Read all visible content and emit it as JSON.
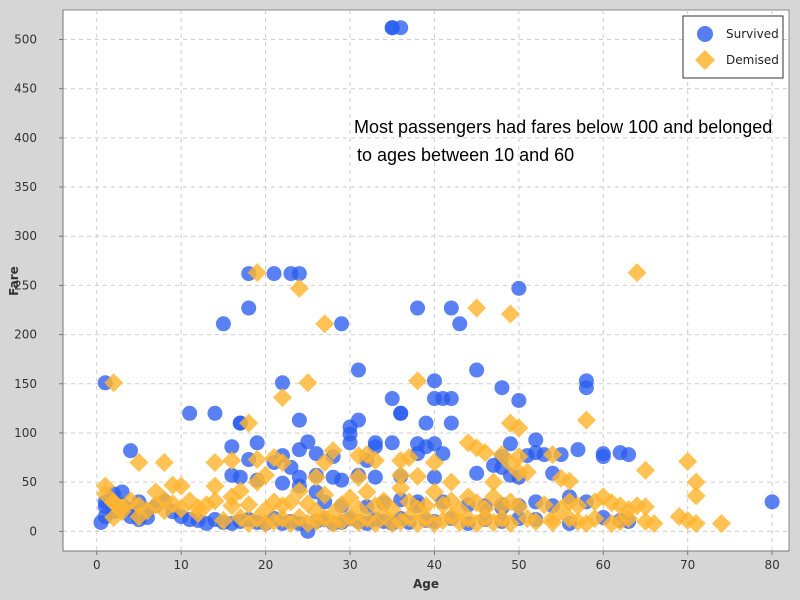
{
  "chart_data": {
    "type": "scatter",
    "title": "",
    "xlabel": "Age",
    "ylabel": "Fare",
    "xlim": [
      -4,
      82
    ],
    "ylim": [
      -20,
      530
    ],
    "xticks": [
      0,
      10,
      20,
      30,
      40,
      50,
      60,
      70,
      80
    ],
    "yticks": [
      0,
      50,
      100,
      150,
      200,
      250,
      300,
      350,
      400,
      450,
      500
    ],
    "grid": true,
    "legend_position": "top-right",
    "annotation": [
      "Most passengers had fares below 100 and belonged",
      "to ages between 10 and 60"
    ],
    "series": [
      {
        "name": "Survived",
        "marker": "circle",
        "color": "#2a5ef0",
        "points": [
          [
            35,
            512
          ],
          [
            36,
            512
          ],
          [
            35,
            512
          ],
          [
            18,
            262
          ],
          [
            21,
            262
          ],
          [
            23,
            262
          ],
          [
            24,
            262
          ],
          [
            18,
            227
          ],
          [
            38,
            227
          ],
          [
            42,
            227
          ],
          [
            50,
            247
          ],
          [
            15,
            211
          ],
          [
            29,
            211
          ],
          [
            43,
            211
          ],
          [
            1,
            151
          ],
          [
            22,
            151
          ],
          [
            31,
            164
          ],
          [
            45,
            164
          ],
          [
            40,
            153
          ],
          [
            58,
            153
          ],
          [
            58,
            146
          ],
          [
            48,
            146
          ],
          [
            35,
            135
          ],
          [
            40,
            135
          ],
          [
            41,
            135
          ],
          [
            42,
            135
          ],
          [
            36,
            120
          ],
          [
            36,
            120
          ],
          [
            11,
            120
          ],
          [
            14,
            120
          ],
          [
            24,
            113
          ],
          [
            31,
            113
          ],
          [
            30,
            106
          ],
          [
            39,
            110
          ],
          [
            42,
            110
          ],
          [
            50,
            133
          ],
          [
            17,
            110
          ],
          [
            17,
            110
          ],
          [
            4,
            82
          ],
          [
            16,
            86
          ],
          [
            19,
            90
          ],
          [
            22,
            77
          ],
          [
            24,
            83
          ],
          [
            25,
            91
          ],
          [
            26,
            79
          ],
          [
            28,
            76
          ],
          [
            30,
            90
          ],
          [
            30,
            99
          ],
          [
            32,
            72
          ],
          [
            33,
            86
          ],
          [
            33,
            90
          ],
          [
            35,
            90
          ],
          [
            38,
            89
          ],
          [
            38,
            79
          ],
          [
            39,
            86
          ],
          [
            40,
            89
          ],
          [
            41,
            79
          ],
          [
            49,
            89
          ],
          [
            48,
            76
          ],
          [
            52,
            93
          ],
          [
            53,
            78
          ],
          [
            55,
            78
          ],
          [
            57,
            83
          ],
          [
            60,
            79
          ],
          [
            60,
            76
          ],
          [
            62,
            80
          ],
          [
            63,
            78
          ],
          [
            52,
            80
          ],
          [
            51,
            77
          ],
          [
            18,
            73
          ],
          [
            21,
            70
          ],
          [
            23,
            65
          ],
          [
            24,
            55
          ],
          [
            26,
            57
          ],
          [
            28,
            55
          ],
          [
            29,
            52
          ],
          [
            31,
            57
          ],
          [
            33,
            55
          ],
          [
            36,
            56
          ],
          [
            40,
            55
          ],
          [
            45,
            59
          ],
          [
            49,
            57
          ],
          [
            50,
            55
          ],
          [
            54,
            59
          ],
          [
            47,
            67
          ],
          [
            48,
            65
          ],
          [
            16,
            57
          ],
          [
            17,
            55
          ],
          [
            19,
            52
          ],
          [
            22,
            49
          ],
          [
            24,
            46
          ],
          [
            26,
            40
          ],
          [
            27,
            30
          ],
          [
            29,
            26
          ],
          [
            32,
            25
          ],
          [
            34,
            29
          ],
          [
            36,
            32
          ],
          [
            38,
            30
          ],
          [
            41,
            30
          ],
          [
            44,
            27
          ],
          [
            46,
            26
          ],
          [
            48,
            27
          ],
          [
            50,
            26
          ],
          [
            52,
            30
          ],
          [
            56,
            35
          ],
          [
            58,
            30
          ],
          [
            0.5,
            9
          ],
          [
            1,
            15
          ],
          [
            1,
            25
          ],
          [
            1,
            30
          ],
          [
            2,
            20
          ],
          [
            2,
            38
          ],
          [
            3,
            40
          ],
          [
            3,
            27
          ],
          [
            4,
            15
          ],
          [
            4,
            22
          ],
          [
            5,
            12
          ],
          [
            5,
            30
          ],
          [
            6,
            14
          ],
          [
            6,
            21
          ],
          [
            7,
            26
          ],
          [
            8,
            31
          ],
          [
            9,
            20
          ],
          [
            10,
            15
          ],
          [
            11,
            12
          ],
          [
            12,
            11
          ],
          [
            13,
            8
          ],
          [
            14,
            12
          ],
          [
            15,
            9
          ],
          [
            16,
            8
          ],
          [
            17,
            10
          ],
          [
            18,
            12
          ],
          [
            19,
            9
          ],
          [
            20,
            8
          ],
          [
            21,
            13
          ],
          [
            22,
            8
          ],
          [
            23,
            10
          ],
          [
            24,
            8
          ],
          [
            25,
            0
          ],
          [
            26,
            10
          ],
          [
            27,
            12
          ],
          [
            28,
            8
          ],
          [
            29,
            9
          ],
          [
            30,
            13
          ],
          [
            31,
            10
          ],
          [
            32,
            8
          ],
          [
            33,
            12
          ],
          [
            34,
            10
          ],
          [
            35,
            8
          ],
          [
            36,
            13
          ],
          [
            37,
            9
          ],
          [
            38,
            26
          ],
          [
            39,
            11
          ],
          [
            40,
            10
          ],
          [
            42,
            13
          ],
          [
            44,
            8
          ],
          [
            46,
            12
          ],
          [
            48,
            10
          ],
          [
            50,
            13
          ],
          [
            52,
            12
          ],
          [
            54,
            26
          ],
          [
            56,
            8
          ],
          [
            60,
            14
          ],
          [
            62,
            11
          ],
          [
            63,
            10
          ],
          [
            80,
            30
          ],
          [
            48,
            24
          ]
        ]
      },
      {
        "name": "Demised",
        "marker": "diamond",
        "color": "#ffb52e",
        "points": [
          [
            64,
            263
          ],
          [
            19,
            263
          ],
          [
            24,
            247
          ],
          [
            45,
            227
          ],
          [
            49,
            221
          ],
          [
            27,
            211
          ],
          [
            2,
            151
          ],
          [
            25,
            151
          ],
          [
            38,
            153
          ],
          [
            22,
            136
          ],
          [
            18,
            110
          ],
          [
            49,
            110
          ],
          [
            50,
            105
          ],
          [
            58,
            113
          ],
          [
            44,
            90
          ],
          [
            45,
            85
          ],
          [
            46,
            80
          ],
          [
            48,
            78
          ],
          [
            50,
            76
          ],
          [
            54,
            78
          ],
          [
            16,
            72
          ],
          [
            19,
            73
          ],
          [
            21,
            75
          ],
          [
            22,
            70
          ],
          [
            28,
            82
          ],
          [
            31,
            77
          ],
          [
            32,
            78
          ],
          [
            36,
            72
          ],
          [
            40,
            70
          ],
          [
            33,
            72
          ],
          [
            37,
            75
          ],
          [
            10,
            46
          ],
          [
            5,
            70
          ],
          [
            8,
            70
          ],
          [
            14,
            70
          ],
          [
            27,
            70
          ],
          [
            49,
            69
          ],
          [
            50,
            60
          ],
          [
            51,
            60
          ],
          [
            65,
            62
          ],
          [
            70,
            71
          ],
          [
            71,
            50
          ],
          [
            71,
            36
          ],
          [
            55,
            54
          ],
          [
            56,
            51
          ],
          [
            42,
            50
          ],
          [
            47,
            50
          ],
          [
            20,
            57
          ],
          [
            26,
            55
          ],
          [
            31,
            55
          ],
          [
            36,
            57
          ],
          [
            38,
            56
          ],
          [
            1,
            46
          ],
          [
            1,
            38
          ],
          [
            2,
            30
          ],
          [
            2,
            14
          ],
          [
            2,
            29
          ],
          [
            3,
            24
          ],
          [
            3,
            20
          ],
          [
            4,
            31
          ],
          [
            5,
            26
          ],
          [
            5,
            15
          ],
          [
            6,
            21
          ],
          [
            7,
            27
          ],
          [
            7,
            40
          ],
          [
            8,
            32
          ],
          [
            8,
            21
          ],
          [
            9,
            28
          ],
          [
            9,
            47
          ],
          [
            10,
            23
          ],
          [
            11,
            31
          ],
          [
            12,
            24
          ],
          [
            12,
            18
          ],
          [
            13,
            27
          ],
          [
            14,
            46
          ],
          [
            14,
            31
          ],
          [
            15,
            11
          ],
          [
            16,
            26
          ],
          [
            16,
            35
          ],
          [
            17,
            41
          ],
          [
            17,
            14
          ],
          [
            18,
            8
          ],
          [
            18,
            27
          ],
          [
            19,
            13
          ],
          [
            19,
            50
          ],
          [
            20,
            8
          ],
          [
            20,
            22
          ],
          [
            21,
            10
          ],
          [
            21,
            30
          ],
          [
            22,
            26
          ],
          [
            22,
            13
          ],
          [
            23,
            8
          ],
          [
            23,
            30
          ],
          [
            24,
            14
          ],
          [
            24,
            41
          ],
          [
            25,
            8
          ],
          [
            25,
            28
          ],
          [
            26,
            10
          ],
          [
            26,
            20
          ],
          [
            27,
            13
          ],
          [
            27,
            37
          ],
          [
            28,
            8
          ],
          [
            28,
            18
          ],
          [
            29,
            27
          ],
          [
            29,
            10
          ],
          [
            30,
            14
          ],
          [
            30,
            34
          ],
          [
            31,
            9
          ],
          [
            31,
            23
          ],
          [
            32,
            13
          ],
          [
            32,
            40
          ],
          [
            33,
            8
          ],
          [
            33,
            26
          ],
          [
            34,
            16
          ],
          [
            34,
            31
          ],
          [
            35,
            8
          ],
          [
            35,
            22
          ],
          [
            36,
            10
          ],
          [
            36,
            44
          ],
          [
            37,
            14
          ],
          [
            37,
            30
          ],
          [
            38,
            8
          ],
          [
            38,
            23
          ],
          [
            39,
            26
          ],
          [
            39,
            13
          ],
          [
            40,
            8
          ],
          [
            40,
            40
          ],
          [
            41,
            11
          ],
          [
            41,
            27
          ],
          [
            42,
            15
          ],
          [
            42,
            31
          ],
          [
            43,
            9
          ],
          [
            43,
            22
          ],
          [
            44,
            13
          ],
          [
            44,
            35
          ],
          [
            45,
            8
          ],
          [
            45,
            29
          ],
          [
            46,
            14
          ],
          [
            46,
            23
          ],
          [
            47,
            9
          ],
          [
            47,
            35
          ],
          [
            48,
            26
          ],
          [
            48,
            13
          ],
          [
            49,
            8
          ],
          [
            49,
            30
          ],
          [
            50,
            25
          ],
          [
            51,
            13
          ],
          [
            52,
            10
          ],
          [
            53,
            27
          ],
          [
            54,
            9
          ],
          [
            55,
            23
          ],
          [
            56,
            13
          ],
          [
            57,
            26
          ],
          [
            58,
            8
          ],
          [
            59,
            13
          ],
          [
            60,
            35
          ],
          [
            61,
            29
          ],
          [
            62,
            26
          ],
          [
            62,
            10
          ],
          [
            63,
            22
          ],
          [
            64,
            26
          ],
          [
            65,
            10
          ],
          [
            65,
            25
          ],
          [
            66,
            8
          ],
          [
            69,
            15
          ],
          [
            70,
            11
          ],
          [
            71,
            8
          ],
          [
            74,
            8
          ],
          [
            54,
            13
          ],
          [
            56,
            30
          ],
          [
            57,
            10
          ],
          [
            59,
            30
          ],
          [
            61,
            8
          ],
          [
            63,
            13
          ]
        ]
      }
    ]
  }
}
